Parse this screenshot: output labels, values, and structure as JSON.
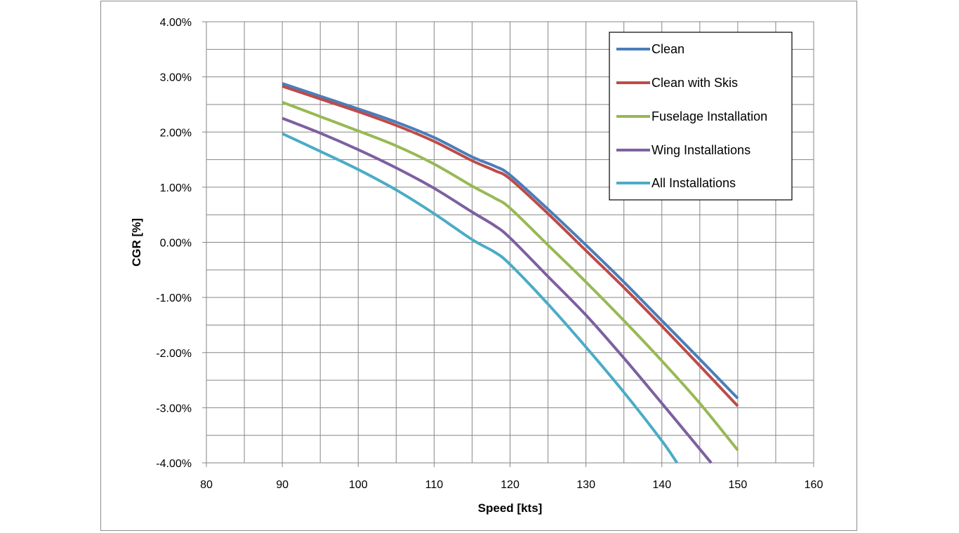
{
  "chart_data": {
    "type": "line",
    "xlabel": "Speed [kts]",
    "ylabel": "CGR [%]",
    "xlim": [
      80,
      160
    ],
    "ylim": [
      -4,
      4
    ],
    "x_ticks": [
      "80",
      "90",
      "100",
      "110",
      "120",
      "130",
      "140",
      "150",
      "160"
    ],
    "y_ticks": [
      "4.00%",
      "3.00%",
      "2.00%",
      "1.00%",
      "0.00%",
      "-1.00%",
      "-2.00%",
      "-3.00%",
      "-4.00%"
    ],
    "grid": true,
    "legend_position": "top-right",
    "series": [
      {
        "name": "Clean",
        "color": "#4a7ebb",
        "x": [
          90,
          95,
          100,
          105,
          110,
          115,
          118,
          120,
          125,
          130,
          135,
          140,
          145,
          150
        ],
        "y": [
          2.88,
          2.65,
          2.42,
          2.18,
          1.9,
          1.55,
          1.38,
          1.22,
          0.6,
          -0.05,
          -0.72,
          -1.42,
          -2.12,
          -2.83
        ]
      },
      {
        "name": "Clean with Skis",
        "color": "#be4b48",
        "x": [
          90,
          95,
          100,
          105,
          110,
          115,
          118,
          120,
          125,
          130,
          135,
          140,
          145,
          150
        ],
        "y": [
          2.83,
          2.6,
          2.37,
          2.12,
          1.83,
          1.48,
          1.3,
          1.15,
          0.52,
          -0.15,
          -0.82,
          -1.52,
          -2.24,
          -2.97
        ]
      },
      {
        "name": "Fuselage Installation",
        "color": "#98b954",
        "x": [
          90,
          95,
          100,
          105,
          110,
          115,
          118,
          120,
          125,
          130,
          135,
          140,
          145,
          150
        ],
        "y": [
          2.54,
          2.28,
          2.02,
          1.75,
          1.42,
          1.02,
          0.8,
          0.62,
          -0.05,
          -0.72,
          -1.42,
          -2.15,
          -2.92,
          -3.77
        ]
      },
      {
        "name": "Wing Installations",
        "color": "#7d60a0",
        "x": [
          90,
          95,
          100,
          105,
          110,
          115,
          118,
          120,
          125,
          130,
          135,
          140,
          145,
          146.5
        ],
        "y": [
          2.25,
          1.98,
          1.68,
          1.35,
          0.98,
          0.55,
          0.3,
          0.08,
          -0.62,
          -1.32,
          -2.1,
          -2.92,
          -3.75,
          -4.0
        ]
      },
      {
        "name": "All Installations",
        "color": "#4bacc6",
        "x": [
          90,
          95,
          100,
          105,
          110,
          115,
          118,
          120,
          125,
          130,
          135,
          140,
          142
        ],
        "y": [
          1.97,
          1.65,
          1.32,
          0.95,
          0.52,
          0.05,
          -0.18,
          -0.4,
          -1.12,
          -1.9,
          -2.72,
          -3.6,
          -4.0
        ]
      }
    ]
  }
}
